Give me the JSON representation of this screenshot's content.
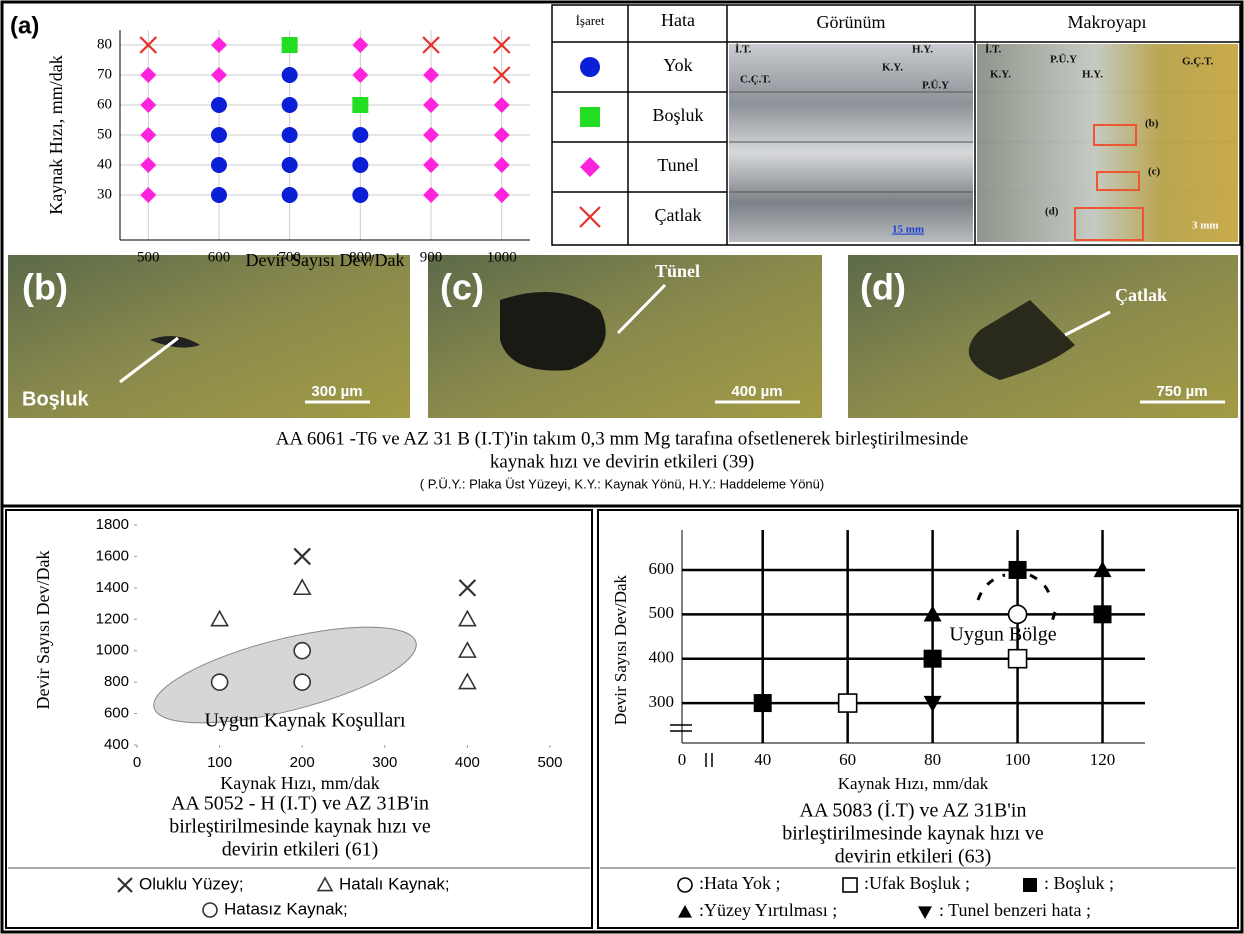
{
  "chart_data": [
    {
      "type": "scatter",
      "panel_label": "(a)",
      "xlabel": "Devir Sayısı Dev/Dak",
      "ylabel": "Kaynak Hızı, mm/dak",
      "xlim": [
        460,
        1040
      ],
      "ylim": [
        15,
        85
      ],
      "xticks": [
        500,
        600,
        700,
        800,
        900,
        1000
      ],
      "yticks": [
        30,
        40,
        50,
        60,
        70,
        80
      ],
      "grid": true,
      "grid_color": "#cccccc",
      "series": [
        {
          "name": "Yok",
          "marker": "circle",
          "color": "#0a1fd6",
          "x": [
            700,
            600,
            700,
            600,
            700,
            800,
            600,
            700,
            800,
            600,
            700,
            800
          ],
          "y": [
            70,
            60,
            60,
            50,
            50,
            50,
            40,
            40,
            40,
            30,
            30,
            30
          ]
        },
        {
          "name": "Boşluk",
          "marker": "square",
          "color": "#22dd22",
          "x": [
            700,
            800
          ],
          "y": [
            80,
            60
          ]
        },
        {
          "name": "Tunel",
          "marker": "diamond",
          "color": "#ff22dd",
          "x": [
            600,
            800,
            500,
            600,
            800,
            900,
            500,
            900,
            1000,
            500,
            900,
            1000,
            500,
            900,
            1000,
            500,
            900,
            1000
          ],
          "y": [
            80,
            80,
            70,
            70,
            70,
            70,
            60,
            60,
            60,
            50,
            50,
            50,
            40,
            40,
            40,
            30,
            30,
            30
          ]
        },
        {
          "name": "Çatlak",
          "marker": "x",
          "color": "#e8302a",
          "x": [
            500,
            900,
            1000,
            1000
          ],
          "y": [
            80,
            80,
            80,
            70
          ]
        }
      ]
    },
    {
      "type": "scatter",
      "title": [
        "AA 5052 - H (I.T) ve  AZ 31B'in",
        "birleştirilmesinde kaynak hızı ve",
        "devirin etkileri  (61)"
      ],
      "xlabel": "Kaynak Hızı, mm/dak",
      "ylabel": "Devir Sayısı Dev/Dak",
      "annotation": "Uygun Kaynak Koşulları",
      "xlim": [
        0,
        500
      ],
      "ylim": [
        400,
        1800
      ],
      "xticks": [
        0,
        100,
        200,
        300,
        400,
        500
      ],
      "yticks": [
        400,
        600,
        800,
        1000,
        1200,
        1400,
        1600,
        1800
      ],
      "grid": false,
      "series": [
        {
          "name": "Oluklu Yüzey;",
          "marker": "x",
          "color": "#333333",
          "x": [
            200,
            400
          ],
          "y": [
            1600,
            1400
          ]
        },
        {
          "name": "Hatalı Kaynak;",
          "marker": "triangle-open",
          "color": "#333333",
          "x": [
            100,
            200,
            400,
            400,
            400
          ],
          "y": [
            1200,
            1400,
            1200,
            1000,
            800
          ]
        },
        {
          "name": "Hatasız Kaynak;",
          "marker": "circle-open",
          "color": "#333333",
          "x": [
            100,
            200,
            200
          ],
          "y": [
            800,
            1000,
            800
          ]
        }
      ]
    },
    {
      "type": "scatter",
      "title": [
        "AA 5083 (İ.T) ve  AZ 31B'in",
        "birleştirilmesinde kaynak hızı ve",
        "devirin etkileri  (63)"
      ],
      "xlabel": "Kaynak Hızı, mm/dak",
      "ylabel": "Devir Sayısı Dev/Dak",
      "annotation": "Uygun Bölge",
      "origin_label": "0",
      "xlim": [
        21,
        130
      ],
      "ylim": [
        210,
        690
      ],
      "xticks": [
        40,
        60,
        80,
        100,
        120
      ],
      "yticks": [
        300,
        400,
        500,
        600
      ],
      "grid": true,
      "grid_color": "#000000",
      "series": [
        {
          "name": ":Hata Yok ;",
          "marker": "circle-open",
          "color": "#000000",
          "x": [
            100
          ],
          "y": [
            500
          ]
        },
        {
          "name": ":Ufak Boşluk ;",
          "marker": "square-open",
          "color": "#000000",
          "x": [
            60,
            100
          ],
          "y": [
            300,
            400
          ]
        },
        {
          "name": ": Boşluk ;",
          "marker": "square",
          "color": "#000000",
          "x": [
            40,
            80,
            100,
            120
          ],
          "y": [
            300,
            400,
            600,
            500
          ]
        },
        {
          "name": ":Yüzey Yırtılması ;",
          "marker": "triangle",
          "color": "#000000",
          "x": [
            80,
            120
          ],
          "y": [
            500,
            600
          ]
        },
        {
          "name": ": Tunel benzeri hata ;",
          "marker": "triangle-down",
          "color": "#000000",
          "x": [
            80
          ],
          "y": [
            300
          ]
        }
      ]
    }
  ],
  "table": {
    "header": [
      "İşaret",
      "Hata",
      "Görünüm",
      "Makroyapı"
    ]
  },
  "appearance_labels": [
    "İ.T.",
    "C.Ç.T.",
    "H.Y.",
    "K.Y.",
    "P.Ü.Y",
    "15 mm"
  ],
  "macro_labels": [
    "İ.T.",
    "P.Ü.Y",
    "K.Y.",
    "H.Y.",
    "G.Ç.T.",
    "(b)",
    "(c)",
    "(d)",
    "3 mm"
  ],
  "micrographs": [
    {
      "label": "(b)",
      "annotation": "Boşluk",
      "scale": "300 µm"
    },
    {
      "label": "(c)",
      "annotation": "Tünel",
      "scale": "400 µm"
    },
    {
      "label": "(d)",
      "annotation": "Çatlak",
      "scale": "750 µm"
    }
  ],
  "figure_caption": [
    "AA 6061 -T6 ve AZ 31 B (I.T)'in  takım 0,3 mm Mg tarafına ofsetlenerek birleştirilmesinde",
    "kaynak hızı ve devirin etkileri (39)",
    "( P.Ü.Y.: Plaka Üst Yüzeyi, K.Y.: Kaynak Yönü, H.Y.: Haddeleme Yönü)"
  ]
}
